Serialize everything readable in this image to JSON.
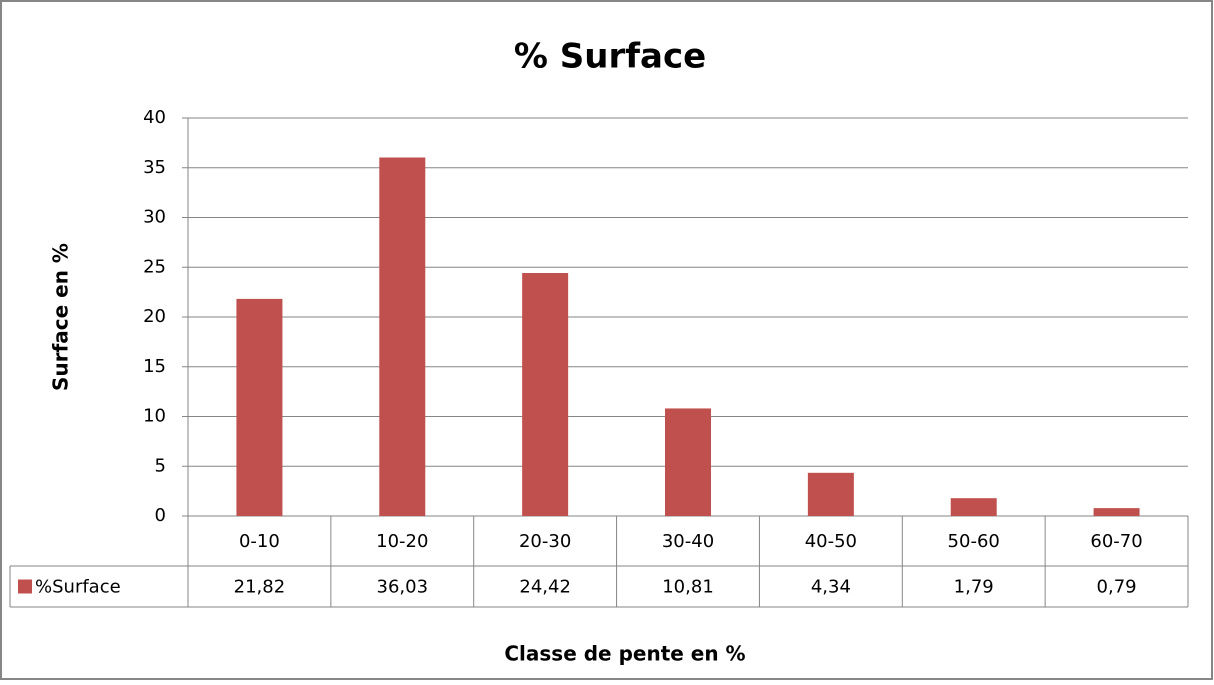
{
  "chart_data": {
    "type": "bar",
    "title": "% Surface",
    "x_label": "Classe de pente en %",
    "y_label": "Surface en %",
    "categories": [
      "0-10",
      "10-20",
      "20-30",
      "30-40",
      "40-50",
      "50-60",
      "60-70"
    ],
    "series": [
      {
        "name": "%Surface",
        "color": "#c0504d",
        "values": [
          21.82,
          36.03,
          24.42,
          10.81,
          4.34,
          1.79,
          0.79
        ],
        "value_labels": [
          "21,82",
          "36,03",
          "24,42",
          "10,81",
          "4,34",
          "1,79",
          "0,79"
        ]
      }
    ],
    "ylim": [
      0,
      40
    ],
    "yticks": [
      0,
      5,
      10,
      15,
      20,
      25,
      30,
      35,
      40
    ],
    "grid": true
  }
}
